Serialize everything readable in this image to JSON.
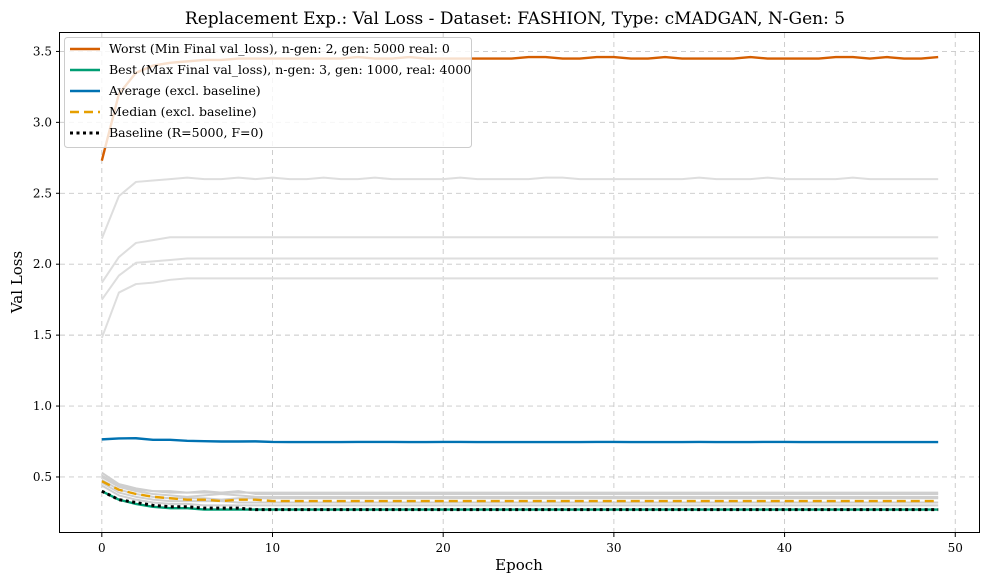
{
  "chart_data": {
    "type": "line",
    "title": "Replacement Exp.: Val Loss - Dataset: FASHION, Type: cMADGAN, N-Gen: 5",
    "xlabel": "Epoch",
    "ylabel": "Val Loss",
    "xlim": [
      -2.45,
      51.45
    ],
    "ylim": [
      0.105,
      3.63
    ],
    "xticks": [
      0,
      10,
      20,
      30,
      40,
      50
    ],
    "yticks": [
      0.5,
      1.0,
      1.5,
      2.0,
      2.5,
      3.0,
      3.5
    ],
    "xtick_labels": [
      "0",
      "10",
      "20",
      "30",
      "40",
      "50"
    ],
    "ytick_labels": [
      "0.5",
      "1.0",
      "1.5",
      "2.0",
      "2.5",
      "3.0",
      "3.5"
    ],
    "grid": true,
    "legend_position": "top-left",
    "epochs": 50,
    "background_runs": [
      {
        "color": "#dedede",
        "values": [
          2.18,
          2.48,
          2.58,
          2.59,
          2.6,
          2.61,
          2.6,
          2.6,
          2.61,
          2.6,
          2.61,
          2.6,
          2.6,
          2.61,
          2.6,
          2.6,
          2.61,
          2.6,
          2.6,
          2.6,
          2.6,
          2.61,
          2.6,
          2.6,
          2.6,
          2.6,
          2.61,
          2.61,
          2.6,
          2.6,
          2.6,
          2.6,
          2.6,
          2.6,
          2.6,
          2.61,
          2.6,
          2.6,
          2.6,
          2.61,
          2.6,
          2.6,
          2.6,
          2.6,
          2.61,
          2.6,
          2.6,
          2.6,
          2.6,
          2.6
        ]
      },
      {
        "color": "#dedede",
        "values": [
          1.87,
          2.05,
          2.15,
          2.17,
          2.19,
          2.19,
          2.19,
          2.19,
          2.19,
          2.19,
          2.19,
          2.19,
          2.19,
          2.19,
          2.19,
          2.19,
          2.19,
          2.19,
          2.19,
          2.19,
          2.19,
          2.19,
          2.19,
          2.19,
          2.19,
          2.19,
          2.19,
          2.19,
          2.19,
          2.19,
          2.19,
          2.19,
          2.19,
          2.19,
          2.19,
          2.19,
          2.19,
          2.19,
          2.19,
          2.19,
          2.19,
          2.19,
          2.19,
          2.19,
          2.19,
          2.19,
          2.19,
          2.19,
          2.19,
          2.19
        ]
      },
      {
        "color": "#dedede",
        "values": [
          1.75,
          1.92,
          2.01,
          2.02,
          2.03,
          2.04,
          2.04,
          2.04,
          2.04,
          2.04,
          2.04,
          2.04,
          2.04,
          2.04,
          2.04,
          2.04,
          2.04,
          2.04,
          2.04,
          2.04,
          2.04,
          2.04,
          2.04,
          2.04,
          2.04,
          2.04,
          2.04,
          2.04,
          2.04,
          2.04,
          2.04,
          2.04,
          2.04,
          2.04,
          2.04,
          2.04,
          2.04,
          2.04,
          2.04,
          2.04,
          2.04,
          2.04,
          2.04,
          2.04,
          2.04,
          2.04,
          2.04,
          2.04,
          2.04,
          2.04
        ]
      },
      {
        "color": "#dedede",
        "values": [
          1.48,
          1.8,
          1.86,
          1.87,
          1.89,
          1.9,
          1.9,
          1.9,
          1.9,
          1.9,
          1.9,
          1.9,
          1.9,
          1.9,
          1.9,
          1.9,
          1.9,
          1.9,
          1.9,
          1.9,
          1.9,
          1.9,
          1.9,
          1.9,
          1.9,
          1.9,
          1.9,
          1.9,
          1.9,
          1.9,
          1.9,
          1.9,
          1.9,
          1.9,
          1.9,
          1.9,
          1.9,
          1.9,
          1.9,
          1.9,
          1.9,
          1.9,
          1.9,
          1.9,
          1.9,
          1.9,
          1.9,
          1.9,
          1.9,
          1.9
        ]
      },
      {
        "color": "#cfcfcf",
        "values": [
          0.53,
          0.45,
          0.42,
          0.4,
          0.4,
          0.39,
          0.39,
          0.39,
          0.39,
          0.39,
          0.39,
          0.39,
          0.39,
          0.39,
          0.39,
          0.39,
          0.39,
          0.39,
          0.39,
          0.39,
          0.39,
          0.39,
          0.39,
          0.39,
          0.39,
          0.39,
          0.39,
          0.39,
          0.39,
          0.39,
          0.39,
          0.39,
          0.39,
          0.39,
          0.39,
          0.39,
          0.39,
          0.39,
          0.39,
          0.39,
          0.39,
          0.39,
          0.39,
          0.39,
          0.39,
          0.39,
          0.39,
          0.39,
          0.39,
          0.39
        ]
      },
      {
        "color": "#cfcfcf",
        "values": [
          0.51,
          0.44,
          0.41,
          0.4,
          0.39,
          0.39,
          0.4,
          0.39,
          0.4,
          0.38,
          0.38,
          0.38,
          0.38,
          0.38,
          0.38,
          0.38,
          0.38,
          0.38,
          0.38,
          0.38,
          0.38,
          0.38,
          0.38,
          0.38,
          0.38,
          0.38,
          0.38,
          0.38,
          0.38,
          0.38,
          0.38,
          0.38,
          0.38,
          0.38,
          0.38,
          0.38,
          0.38,
          0.38,
          0.38,
          0.38,
          0.38,
          0.38,
          0.38,
          0.38,
          0.38,
          0.38,
          0.38,
          0.38,
          0.38,
          0.38
        ]
      },
      {
        "color": "#cfcfcf",
        "values": [
          0.5,
          0.43,
          0.4,
          0.38,
          0.37,
          0.36,
          0.37,
          0.38,
          0.37,
          0.36,
          0.36,
          0.36,
          0.36,
          0.36,
          0.36,
          0.36,
          0.36,
          0.36,
          0.36,
          0.36,
          0.36,
          0.36,
          0.36,
          0.36,
          0.36,
          0.36,
          0.36,
          0.36,
          0.36,
          0.36,
          0.36,
          0.36,
          0.36,
          0.36,
          0.36,
          0.36,
          0.36,
          0.36,
          0.36,
          0.36,
          0.36,
          0.36,
          0.36,
          0.36,
          0.36,
          0.36,
          0.36,
          0.36,
          0.36,
          0.36
        ]
      },
      {
        "color": "#cfcfcf",
        "values": [
          0.48,
          0.41,
          0.38,
          0.36,
          0.35,
          0.35,
          0.35,
          0.34,
          0.35,
          0.35,
          0.35,
          0.35,
          0.35,
          0.35,
          0.35,
          0.35,
          0.35,
          0.35,
          0.35,
          0.35,
          0.35,
          0.35,
          0.35,
          0.35,
          0.35,
          0.35,
          0.35,
          0.35,
          0.35,
          0.35,
          0.35,
          0.35,
          0.35,
          0.35,
          0.35,
          0.35,
          0.35,
          0.35,
          0.35,
          0.35,
          0.35,
          0.35,
          0.35,
          0.35,
          0.35,
          0.35,
          0.35,
          0.35,
          0.35,
          0.35
        ]
      },
      {
        "color": "#cfcfcf",
        "values": [
          0.46,
          0.39,
          0.36,
          0.34,
          0.33,
          0.33,
          0.33,
          0.33,
          0.32,
          0.32,
          0.32,
          0.32,
          0.32,
          0.32,
          0.32,
          0.32,
          0.32,
          0.32,
          0.32,
          0.32,
          0.32,
          0.32,
          0.32,
          0.32,
          0.32,
          0.32,
          0.32,
          0.32,
          0.32,
          0.32,
          0.32,
          0.32,
          0.32,
          0.32,
          0.32,
          0.32,
          0.32,
          0.32,
          0.32,
          0.32,
          0.32,
          0.32,
          0.32,
          0.32,
          0.32,
          0.32,
          0.32,
          0.32,
          0.32,
          0.32
        ]
      },
      {
        "color": "#cfcfcf",
        "values": [
          0.44,
          0.37,
          0.34,
          0.32,
          0.31,
          0.31,
          0.3,
          0.3,
          0.3,
          0.3,
          0.3,
          0.3,
          0.3,
          0.3,
          0.3,
          0.3,
          0.3,
          0.3,
          0.3,
          0.3,
          0.3,
          0.3,
          0.3,
          0.3,
          0.3,
          0.3,
          0.3,
          0.3,
          0.3,
          0.3,
          0.3,
          0.3,
          0.3,
          0.3,
          0.3,
          0.3,
          0.3,
          0.3,
          0.3,
          0.3,
          0.3,
          0.3,
          0.3,
          0.3,
          0.3,
          0.3,
          0.3,
          0.3,
          0.3,
          0.3
        ]
      }
    ],
    "series": [
      {
        "name": "Worst (Min Final val_loss), n-gen: 2, gen: 5000 real: 0",
        "color": "#d55e00",
        "style": "solid",
        "values": [
          2.73,
          3.2,
          3.35,
          3.4,
          3.42,
          3.43,
          3.44,
          3.44,
          3.45,
          3.45,
          3.45,
          3.45,
          3.45,
          3.45,
          3.45,
          3.46,
          3.45,
          3.45,
          3.46,
          3.45,
          3.45,
          3.45,
          3.45,
          3.45,
          3.45,
          3.46,
          3.46,
          3.45,
          3.45,
          3.46,
          3.46,
          3.45,
          3.45,
          3.46,
          3.45,
          3.45,
          3.45,
          3.45,
          3.46,
          3.45,
          3.45,
          3.45,
          3.45,
          3.46,
          3.46,
          3.45,
          3.46,
          3.45,
          3.45,
          3.46
        ]
      },
      {
        "name": "Best (Max Final val_loss), n-gen: 3, gen: 1000, real: 4000",
        "color": "#009e73",
        "style": "solid",
        "values": [
          0.4,
          0.34,
          0.31,
          0.29,
          0.28,
          0.28,
          0.27,
          0.27,
          0.27,
          0.27,
          0.27,
          0.27,
          0.27,
          0.27,
          0.27,
          0.27,
          0.27,
          0.27,
          0.27,
          0.27,
          0.27,
          0.27,
          0.27,
          0.27,
          0.27,
          0.27,
          0.27,
          0.27,
          0.27,
          0.27,
          0.27,
          0.27,
          0.27,
          0.27,
          0.27,
          0.27,
          0.27,
          0.27,
          0.27,
          0.27,
          0.27,
          0.27,
          0.27,
          0.27,
          0.27,
          0.27,
          0.27,
          0.27,
          0.27,
          0.27
        ]
      },
      {
        "name": "Average (excl. baseline)",
        "color": "#0072b2",
        "style": "solid",
        "values": [
          0.765,
          0.772,
          0.773,
          0.762,
          0.762,
          0.755,
          0.752,
          0.75,
          0.75,
          0.751,
          0.747,
          0.746,
          0.746,
          0.746,
          0.746,
          0.747,
          0.747,
          0.747,
          0.746,
          0.746,
          0.747,
          0.747,
          0.746,
          0.746,
          0.746,
          0.746,
          0.746,
          0.746,
          0.746,
          0.747,
          0.747,
          0.746,
          0.746,
          0.746,
          0.746,
          0.747,
          0.746,
          0.746,
          0.746,
          0.747,
          0.747,
          0.746,
          0.746,
          0.746,
          0.746,
          0.746,
          0.746,
          0.746,
          0.746,
          0.746
        ]
      },
      {
        "name": "Median (excl. baseline)",
        "color": "#e69f00",
        "style": "dashed",
        "values": [
          0.47,
          0.41,
          0.38,
          0.36,
          0.35,
          0.34,
          0.34,
          0.33,
          0.34,
          0.34,
          0.33,
          0.33,
          0.33,
          0.33,
          0.33,
          0.33,
          0.33,
          0.33,
          0.33,
          0.33,
          0.33,
          0.33,
          0.33,
          0.33,
          0.33,
          0.33,
          0.33,
          0.33,
          0.33,
          0.33,
          0.33,
          0.33,
          0.33,
          0.33,
          0.33,
          0.33,
          0.33,
          0.33,
          0.33,
          0.33,
          0.33,
          0.33,
          0.33,
          0.33,
          0.33,
          0.33,
          0.33,
          0.33,
          0.33,
          0.33
        ]
      },
      {
        "name": "Baseline (R=5000, F=0)",
        "color": "#000000",
        "style": "dotted",
        "values": [
          0.4,
          0.34,
          0.32,
          0.3,
          0.29,
          0.29,
          0.28,
          0.28,
          0.28,
          0.27,
          0.27,
          0.27,
          0.27,
          0.27,
          0.27,
          0.27,
          0.27,
          0.27,
          0.27,
          0.27,
          0.27,
          0.27,
          0.27,
          0.27,
          0.27,
          0.27,
          0.27,
          0.27,
          0.27,
          0.27,
          0.27,
          0.27,
          0.27,
          0.27,
          0.27,
          0.27,
          0.27,
          0.27,
          0.27,
          0.27,
          0.27,
          0.27,
          0.27,
          0.27,
          0.27,
          0.27,
          0.27,
          0.27,
          0.27,
          0.27
        ]
      }
    ]
  }
}
